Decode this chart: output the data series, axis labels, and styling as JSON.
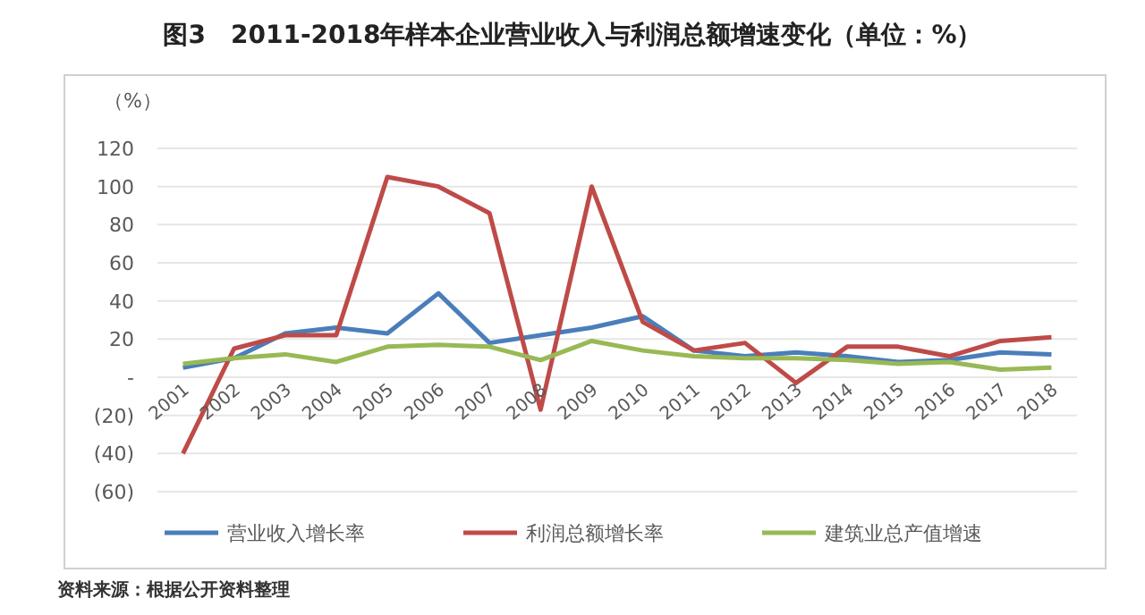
{
  "chart_data": {
    "type": "line",
    "title": "图3　2011-2018年样本企业营业收入与利润总额增速变化（单位：%）",
    "ylabel": "（%）",
    "categories": [
      "2001",
      "2002",
      "2003",
      "2004",
      "2005",
      "2006",
      "2007",
      "2008",
      "2009",
      "2010",
      "2011",
      "2012",
      "2013",
      "2014",
      "2015",
      "2016",
      "2017",
      "2018"
    ],
    "series": [
      {
        "name": "营业收入增长率",
        "color": "#4a7ebb",
        "values": [
          5,
          10,
          23,
          26,
          23,
          44,
          18,
          22,
          26,
          32,
          14,
          11,
          13,
          11,
          8,
          9,
          13,
          12
        ]
      },
      {
        "name": "利润总额增长率",
        "color": "#be4b48",
        "values": [
          -40,
          15,
          22,
          22,
          105,
          100,
          86,
          -17,
          100,
          29,
          14,
          18,
          -3,
          16,
          16,
          11,
          19,
          21
        ]
      },
      {
        "name": "建筑业总产值增速",
        "color": "#98b954",
        "values": [
          7,
          10,
          12,
          8,
          16,
          17,
          16,
          9,
          19,
          14,
          11,
          10,
          10,
          9,
          7,
          8,
          4,
          5
        ]
      }
    ],
    "ylim": [
      -60,
      120
    ],
    "yticks": [
      {
        "value": -60,
        "label": "(60)"
      },
      {
        "value": -40,
        "label": "(40)"
      },
      {
        "value": -20,
        "label": "(20)"
      },
      {
        "value": 0,
        "label": "-"
      },
      20,
      40,
      60,
      80,
      100,
      120
    ],
    "grid": "y",
    "legend": "bottom",
    "marker": "none",
    "line_style": "solid",
    "annotations": [
      "资料来源：根据公开资料整理"
    ]
  }
}
